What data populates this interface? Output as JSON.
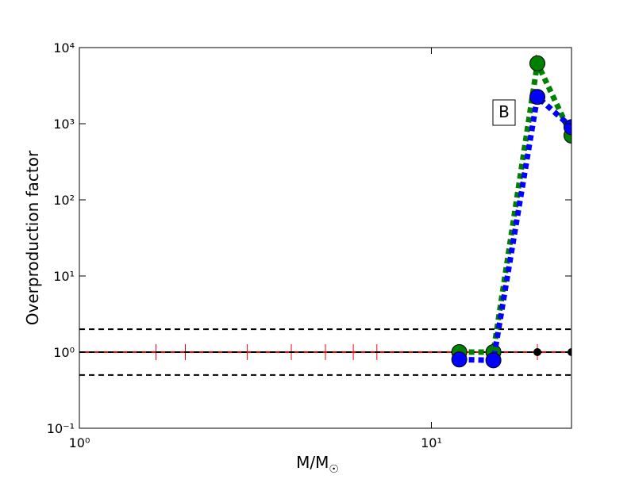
{
  "chart_data": {
    "type": "line",
    "xlabel": "M/M",
    "xlabel_sub": "☉",
    "ylabel": "Overproduction factor",
    "xscale": "log",
    "yscale": "log",
    "xlim": [
      1,
      25
    ],
    "ylim": [
      0.1,
      10000
    ],
    "xticks": [
      {
        "value": 1,
        "label": "10⁰"
      },
      {
        "value": 10,
        "label": "10¹"
      }
    ],
    "yticks": [
      {
        "value": 0.1,
        "label": "10⁻¹"
      },
      {
        "value": 1,
        "label": "10⁰"
      },
      {
        "value": 10,
        "label": "10¹"
      },
      {
        "value": 100,
        "label": "10²"
      },
      {
        "value": 1000,
        "label": "10³"
      },
      {
        "value": 10000,
        "label": "10⁴"
      }
    ],
    "hlines": [
      {
        "value": 2,
        "color": "#000000"
      },
      {
        "value": 1,
        "color": "#000000"
      },
      {
        "value": 0.5,
        "color": "#000000"
      }
    ],
    "series": [
      {
        "color": "#ff0000",
        "linestyle": "solid",
        "marker": "vline",
        "x": [
          1,
          1.65,
          2,
          3,
          4,
          5,
          6,
          7,
          12,
          15,
          20,
          25
        ],
        "values": [
          1,
          1,
          1,
          1,
          1,
          1,
          1,
          1,
          1,
          1,
          1,
          1
        ]
      },
      {
        "color": "#000000",
        "linestyle": "none",
        "marker": "circle-small",
        "x": [
          12,
          15,
          20,
          25
        ],
        "values": [
          1,
          1,
          1,
          1
        ]
      },
      {
        "color": "#008000",
        "linestyle": "dotted",
        "marker": "circle",
        "x": [
          12,
          15,
          20,
          25
        ],
        "values": [
          1,
          1,
          6200,
          700
        ]
      },
      {
        "color": "#0000ff",
        "linestyle": "dotted",
        "marker": "circle",
        "x": [
          12,
          15,
          20,
          25
        ],
        "values": [
          0.8,
          0.78,
          2250,
          900
        ]
      }
    ],
    "annotation": "B"
  }
}
